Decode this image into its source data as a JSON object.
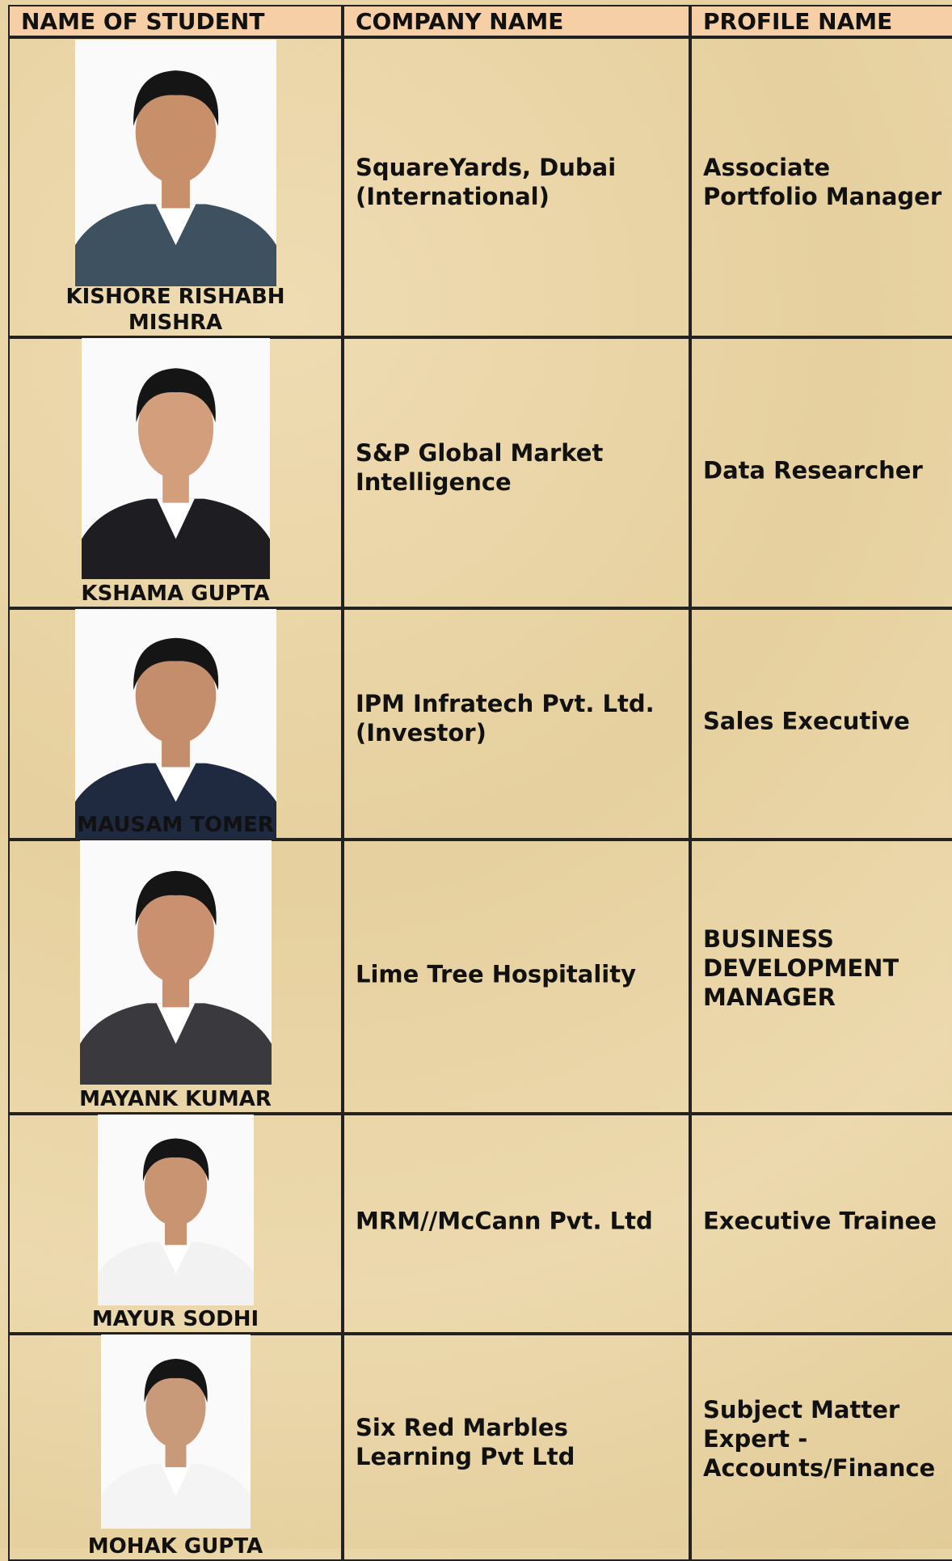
{
  "header": {
    "columns": [
      "NAME OF STUDENT",
      "COMPANY NAME",
      "PROFILE NAME"
    ]
  },
  "rows": [
    {
      "name": "KISHORE RISHABH MISHRA",
      "company": "SquareYards, Dubai (International)",
      "profile": "Associate Portfolio Manager"
    },
    {
      "name": "KSHAMA GUPTA",
      "company": "S&P Global Market Intelligence",
      "profile": "Data Researcher"
    },
    {
      "name": "MAUSAM TOMER",
      "company": "IPM Infratech Pvt. Ltd. (Investor)",
      "profile": "Sales Executive"
    },
    {
      "name": "MAYANK KUMAR",
      "company": "Lime Tree Hospitality",
      "profile": "BUSINESS DEVELOPMENT MANAGER"
    },
    {
      "name": "MAYUR SODHI",
      "company": "MRM//McCann Pvt. Ltd",
      "profile": "Executive Trainee"
    },
    {
      "name": "MOHAK GUPTA",
      "company": "Six Red Marbles Learning Pvt Ltd",
      "profile": "Subject Matter Expert - Accounts/Finance"
    }
  ]
}
